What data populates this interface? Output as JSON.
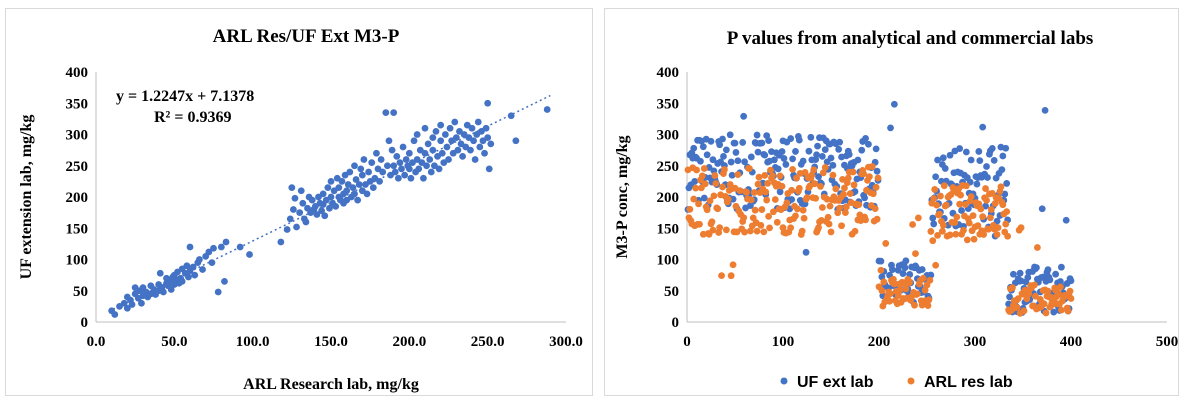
{
  "chart_data": [
    {
      "type": "scatter",
      "title": "ARL Res/UF Ext M3-P",
      "xlabel": "ARL Research lab, mg/kg",
      "ylabel": "UF extension lab, mg/kg",
      "xlim": [
        0,
        300
      ],
      "ylim": [
        0,
        400
      ],
      "xticks": [
        "0.0",
        "50.0",
        "100.0",
        "150.0",
        "200.0",
        "250.0",
        "300.0"
      ],
      "yticks": [
        "0",
        "50",
        "100",
        "150",
        "200",
        "250",
        "300",
        "350",
        "400"
      ],
      "grid": false,
      "colors": {
        "points": "#4472c4",
        "trendline": "#4472c4"
      },
      "trendline": {
        "equation": "y = 1.2247x + 7.1378",
        "r2": "R² = 0.9369",
        "slope": 1.2247,
        "intercept": 7.1378,
        "x_range": [
          8,
          290
        ]
      },
      "series": [
        {
          "points": [
            [
              10,
              18
            ],
            [
              12,
              12
            ],
            [
              15,
              25
            ],
            [
              18,
              30
            ],
            [
              20,
              22
            ],
            [
              20,
              40
            ],
            [
              22,
              35
            ],
            [
              23,
              28
            ],
            [
              25,
              45
            ],
            [
              25,
              55
            ],
            [
              27,
              38
            ],
            [
              28,
              50
            ],
            [
              29,
              30
            ],
            [
              30,
              42
            ],
            [
              30,
              55
            ],
            [
              32,
              48
            ],
            [
              33,
              40
            ],
            [
              35,
              45
            ],
            [
              35,
              58
            ],
            [
              37,
              52
            ],
            [
              38,
              44
            ],
            [
              40,
              60
            ],
            [
              40,
              50
            ],
            [
              41,
              78
            ],
            [
              42,
              55
            ],
            [
              43,
              48
            ],
            [
              45,
              62
            ],
            [
              45,
              70
            ],
            [
              46,
              58
            ],
            [
              47,
              66
            ],
            [
              48,
              52
            ],
            [
              49,
              72
            ],
            [
              50,
              60
            ],
            [
              50,
              75
            ],
            [
              51,
              68
            ],
            [
              52,
              80
            ],
            [
              53,
              62
            ],
            [
              54,
              70
            ],
            [
              55,
              85
            ],
            [
              55,
              65
            ],
            [
              57,
              78
            ],
            [
              58,
              90
            ],
            [
              59,
              72
            ],
            [
              60,
              82
            ],
            [
              60,
              120
            ],
            [
              62,
              88
            ],
            [
              63,
              75
            ],
            [
              65,
              95
            ],
            [
              66,
              100
            ],
            [
              68,
              84
            ],
            [
              70,
              105
            ],
            [
              72,
              112
            ],
            [
              74,
              95
            ],
            [
              75,
              118
            ],
            [
              78,
              48
            ],
            [
              80,
              120
            ],
            [
              82,
              65
            ],
            [
              83,
              128
            ],
            [
              92,
              120
            ],
            [
              98,
              108
            ],
            [
              118,
              128
            ],
            [
              122,
              148
            ],
            [
              124,
              165
            ],
            [
              125,
              215
            ],
            [
              126,
              180
            ],
            [
              127,
              198
            ],
            [
              128,
              152
            ],
            [
              130,
              175
            ],
            [
              131,
              210
            ],
            [
              132,
              190
            ],
            [
              133,
              165
            ],
            [
              134,
              160
            ],
            [
              135,
              182
            ],
            [
              136,
              200
            ],
            [
              137,
              175
            ],
            [
              138,
              195
            ],
            [
              139,
              180
            ],
            [
              140,
              185
            ],
            [
              141,
              172
            ],
            [
              142,
              200
            ],
            [
              143,
              190
            ],
            [
              144,
              178
            ],
            [
              145,
              205
            ],
            [
              145,
              188
            ],
            [
              146,
              170
            ],
            [
              147,
              195
            ],
            [
              148,
              215
            ],
            [
              149,
              182
            ],
            [
              150,
              225
            ],
            [
              150,
              200
            ],
            [
              151,
              190
            ],
            [
              152,
              210
            ],
            [
              153,
              185
            ],
            [
              154,
              230
            ],
            [
              155,
              200
            ],
            [
              155,
              215
            ],
            [
              156,
              195
            ],
            [
              157,
              225
            ],
            [
              158,
              205
            ],
            [
              158,
              190
            ],
            [
              159,
              235
            ],
            [
              160,
              210
            ],
            [
              160,
              195
            ],
            [
              161,
              220
            ],
            [
              162,
              240
            ],
            [
              163,
              200
            ],
            [
              164,
              215
            ],
            [
              165,
              250
            ],
            [
              165,
              205
            ],
            [
              166,
              228
            ],
            [
              167,
              195
            ],
            [
              168,
              220
            ],
            [
              169,
              245
            ],
            [
              170,
              210
            ],
            [
              170,
              235
            ],
            [
              171,
              260
            ],
            [
              172,
              220
            ],
            [
              173,
              205
            ],
            [
              174,
              240
            ],
            [
              175,
              225
            ],
            [
              176,
              255
            ],
            [
              177,
              215
            ],
            [
              178,
              230
            ],
            [
              179,
              270
            ],
            [
              180,
              245
            ],
            [
              181,
              225
            ],
            [
              182,
              260
            ],
            [
              183,
              240
            ],
            [
              185,
              335
            ],
            [
              186,
              250
            ],
            [
              187,
              290
            ],
            [
              188,
              235
            ],
            [
              189,
              275
            ],
            [
              190,
              250
            ],
            [
              190,
              335
            ],
            [
              191,
              240
            ],
            [
              192,
              265
            ],
            [
              193,
              230
            ],
            [
              194,
              255
            ],
            [
              195,
              245
            ],
            [
              196,
              280
            ],
            [
              197,
              235
            ],
            [
              198,
              260
            ],
            [
              199,
              250
            ],
            [
              200,
              270
            ],
            [
              200,
              245
            ],
            [
              201,
              230
            ],
            [
              202,
              255
            ],
            [
              203,
              290
            ],
            [
              204,
              240
            ],
            [
              205,
              300
            ],
            [
              205,
              260
            ],
            [
              206,
              245
            ],
            [
              207,
              275
            ],
            [
              208,
              255
            ],
            [
              209,
              230
            ],
            [
              210,
              310
            ],
            [
              210,
              270
            ],
            [
              211,
              250
            ],
            [
              212,
              285
            ],
            [
              213,
              260
            ],
            [
              214,
              240
            ],
            [
              215,
              295
            ],
            [
              215,
              275
            ],
            [
              216,
              250
            ],
            [
              217,
              305
            ],
            [
              218,
              265
            ],
            [
              219,
              245
            ],
            [
              220,
              290
            ],
            [
              220,
              315
            ],
            [
              221,
              270
            ],
            [
              222,
              255
            ],
            [
              223,
              300
            ],
            [
              224,
              280
            ],
            [
              225,
              260
            ],
            [
              226,
              310
            ],
            [
              227,
              290
            ],
            [
              228,
              270
            ],
            [
              229,
              320
            ],
            [
              230,
              295
            ],
            [
              231,
              275
            ],
            [
              232,
              305
            ],
            [
              233,
              285
            ],
            [
              234,
              265
            ],
            [
              235,
              300
            ],
            [
              236,
              280
            ],
            [
              237,
              315
            ],
            [
              238,
              295
            ],
            [
              239,
              275
            ],
            [
              240,
              310
            ],
            [
              241,
              290
            ],
            [
              242,
              260
            ],
            [
              243,
              300
            ],
            [
              244,
              320
            ],
            [
              245,
              280
            ],
            [
              246,
              305
            ],
            [
              247,
              290
            ],
            [
              248,
              270
            ],
            [
              249,
              310
            ],
            [
              250,
              350
            ],
            [
              250,
              295
            ],
            [
              251,
              245
            ],
            [
              252,
              285
            ],
            [
              265,
              330
            ],
            [
              268,
              290
            ],
            [
              288,
              340
            ]
          ]
        }
      ]
    },
    {
      "type": "scatter",
      "title": "P values from analytical and commercial labs",
      "xlabel": "",
      "ylabel": "M3-P conc, mg/kg",
      "xlim": [
        0,
        500
      ],
      "ylim": [
        0,
        400
      ],
      "xticks": [
        "0",
        "100",
        "200",
        "300",
        "400",
        "500"
      ],
      "yticks": [
        "0",
        "50",
        "100",
        "150",
        "200",
        "250",
        "300",
        "350",
        "400"
      ],
      "grid": false,
      "legend": "bottom",
      "series": [
        {
          "name": "UF ext lab",
          "color": "#4472c4"
        },
        {
          "name": "ARL res lab",
          "color": "#ed7d31"
        }
      ]
    }
  ]
}
